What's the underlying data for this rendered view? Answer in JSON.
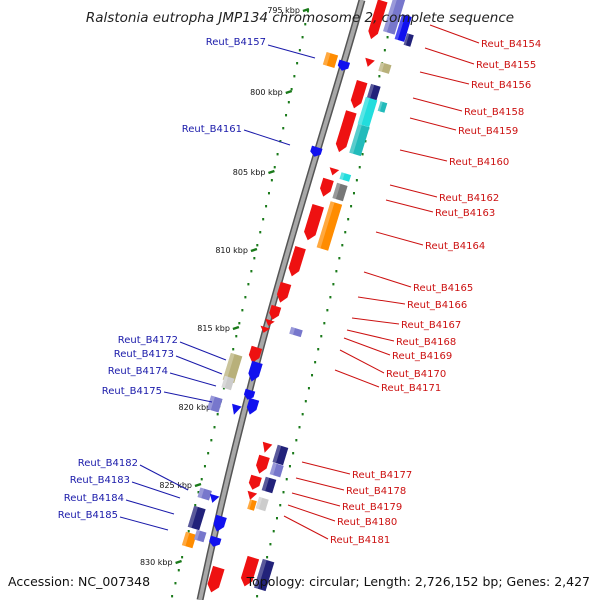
{
  "title": "Ralstonia eutropha JMP134 chromosome 2, complete sequence",
  "footer": {
    "accession": "Accession: NC_007348",
    "summary": "Topology: circular; Length: 2,726,152 bp; Genes: 2,427"
  },
  "colors": {
    "backbone": "#8a8a8a",
    "tick": "#1a7a1a",
    "label_left": "#1a1aaa",
    "label_right": "#cc1111",
    "red": "#ee1111",
    "blue": "#1111ee",
    "navy": "#22227a",
    "lavender": "#7777cc",
    "orange": "#ff8c00",
    "cyan": "#22dddd",
    "teal": "#22bbbb",
    "khaki": "#b8b07a",
    "gray": "#777777"
  },
  "kbp_ticks": [
    {
      "text": "795 kbp"
    },
    {
      "text": "800 kbp"
    },
    {
      "text": "805 kbp"
    },
    {
      "text": "810 kbp"
    },
    {
      "text": "815 kbp"
    },
    {
      "text": "820 kbp"
    },
    {
      "text": "825 kbp"
    },
    {
      "text": "830 kbp"
    }
  ],
  "left_labels": [
    {
      "text": "Reut_B4157"
    },
    {
      "text": "Reut_B4161"
    },
    {
      "text": "Reut_B4172"
    },
    {
      "text": "Reut_B4173"
    },
    {
      "text": "Reut_B4174"
    },
    {
      "text": "Reut_B4175"
    },
    {
      "text": "Reut_B4182"
    },
    {
      "text": "Reut_B4183"
    },
    {
      "text": "Reut_B4184"
    },
    {
      "text": "Reut_B4185"
    }
  ],
  "right_labels": [
    {
      "text": "Reut_B4154"
    },
    {
      "text": "Reut_B4155"
    },
    {
      "text": "Reut_B4156"
    },
    {
      "text": "Reut_B4158"
    },
    {
      "text": "Reut_B4159"
    },
    {
      "text": "Reut_B4160"
    },
    {
      "text": "Reut_B4162"
    },
    {
      "text": "Reut_B4163"
    },
    {
      "text": "Reut_B4164"
    },
    {
      "text": "Reut_B4165"
    },
    {
      "text": "Reut_B4166"
    },
    {
      "text": "Reut_B4167"
    },
    {
      "text": "Reut_B4168"
    },
    {
      "text": "Reut_B4169"
    },
    {
      "text": "Reut_B4170"
    },
    {
      "text": "Reut_B4171"
    },
    {
      "text": "Reut_B4177"
    },
    {
      "text": "Reut_B4178"
    },
    {
      "text": "Reut_B4179"
    },
    {
      "text": "Reut_B4180"
    },
    {
      "text": "Reut_B4181"
    }
  ]
}
